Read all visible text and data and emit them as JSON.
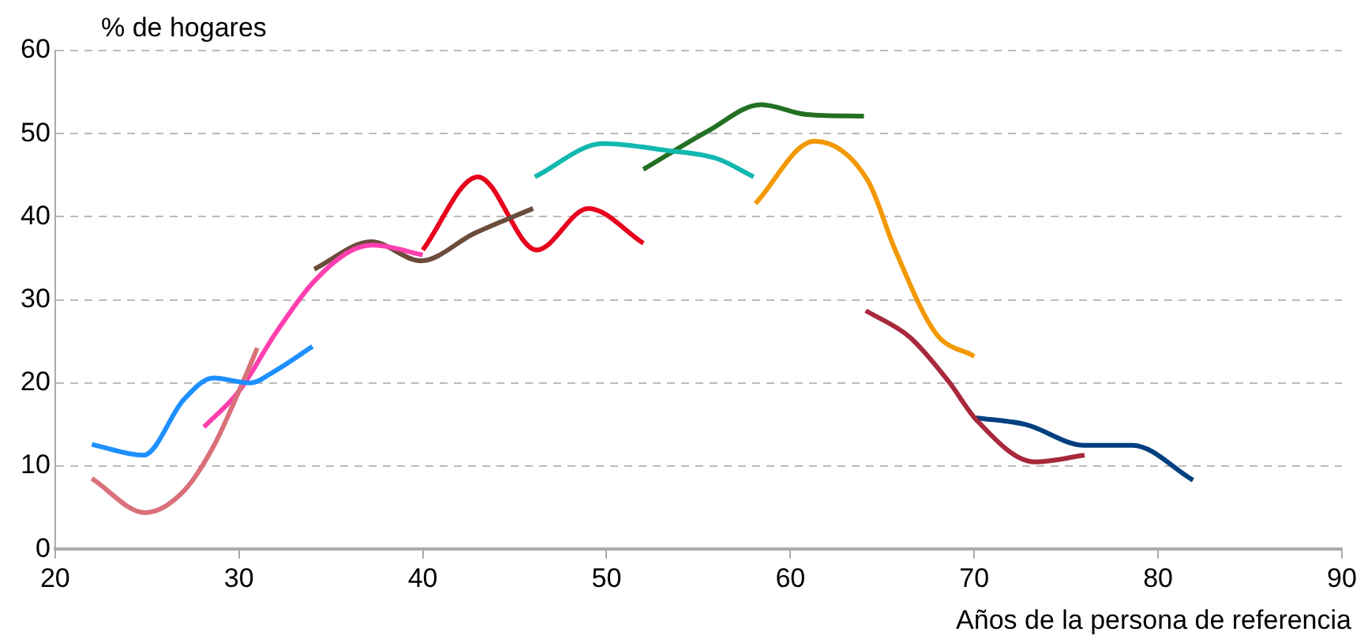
{
  "chart_data": {
    "type": "line",
    "xlabel": "Años de la persona de referencia",
    "ylabel": "% de hogares",
    "xlim": [
      20,
      90
    ],
    "xticks": [
      20,
      30,
      40,
      50,
      60,
      70,
      80,
      90
    ],
    "ylim": [
      0,
      60
    ],
    "yticks": [
      0,
      10,
      20,
      30,
      40,
      50,
      60
    ],
    "grid": "y",
    "legend": false,
    "marker": "none",
    "line_style": "solid",
    "series": [
      {
        "color": "#1e90ff",
        "x": [
          22,
          24.8,
          27,
          28.6,
          30.6,
          32,
          34
        ],
        "values": [
          12.6,
          11.3,
          18,
          20.6,
          20,
          21.5,
          24.4
        ]
      },
      {
        "color": "#d9707a",
        "x": [
          22,
          24.9,
          27,
          28.6,
          30,
          31
        ],
        "values": [
          8.5,
          4.4,
          7,
          12.3,
          19,
          24.2
        ]
      },
      {
        "color": "#ff3fb0",
        "x": [
          28.1,
          30,
          32,
          34,
          36,
          37.3,
          40
        ],
        "values": [
          14.7,
          19,
          26,
          32,
          35.8,
          36.6,
          35.4
        ]
      },
      {
        "color": "#6b4c3b",
        "x": [
          34.1,
          37.2,
          39.9,
          42.8,
          46
        ],
        "values": [
          33.7,
          37,
          34.7,
          38,
          41
        ]
      },
      {
        "color": "#e8001c",
        "x": [
          40,
          43,
          46.2,
          49,
          52
        ],
        "values": [
          36,
          44.8,
          36,
          41,
          36.8
        ]
      },
      {
        "color": "#12b8b0",
        "x": [
          46.1,
          49.8,
          53.2,
          56,
          58
        ],
        "values": [
          44.8,
          48.8,
          48,
          47,
          44.8
        ]
      },
      {
        "color": "#237023",
        "x": [
          52,
          55.5,
          58.4,
          60.9,
          64
        ],
        "values": [
          45.7,
          50.3,
          53.5,
          52.3,
          52.1
        ]
      },
      {
        "color": "#f39800",
        "x": [
          58.1,
          61.3,
          64.2,
          65.7,
          67.9,
          70
        ],
        "values": [
          41.6,
          49.1,
          44.4,
          36,
          26,
          23.2
        ]
      },
      {
        "color": "#a8283c",
        "x": [
          64.1,
          66.5,
          68.6,
          70.1,
          73.3,
          76
        ],
        "values": [
          28.7,
          25.5,
          20.2,
          15.6,
          10.5,
          11.3
        ]
      },
      {
        "color": "#003f80",
        "x": [
          70.1,
          72.8,
          76,
          78.6,
          81.9
        ],
        "values": [
          15.8,
          15,
          12.5,
          12.5,
          8.3
        ]
      }
    ]
  }
}
